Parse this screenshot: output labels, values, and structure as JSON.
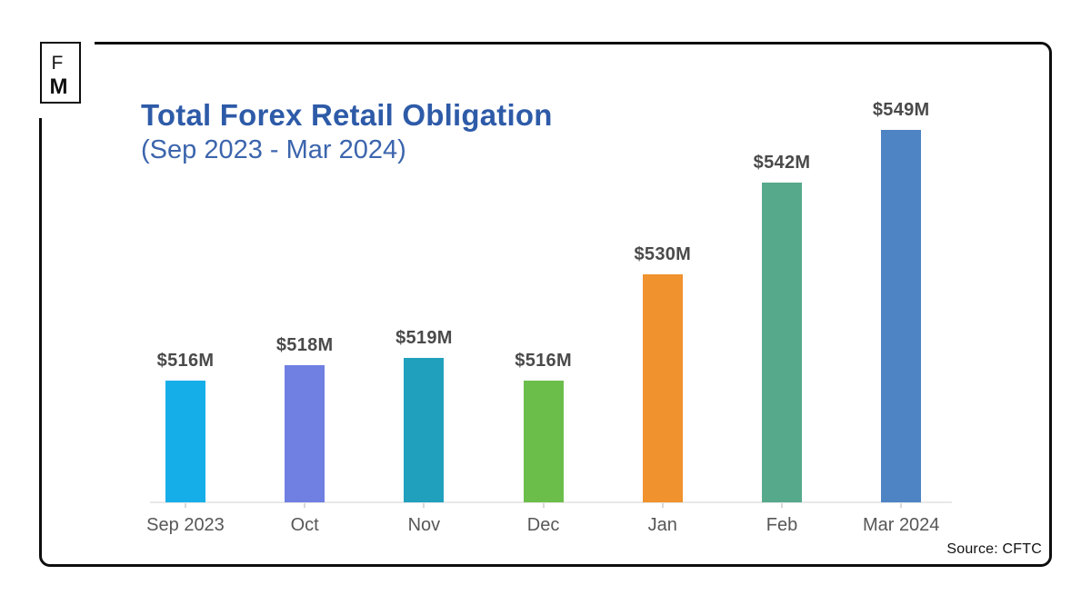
{
  "logo": {
    "line1": "F",
    "line2": "M"
  },
  "header": {
    "title": "Total Forex Retail Obligation",
    "subtitle": "(Sep 2023 - Mar 2024)",
    "title_color": "#2e5ba8"
  },
  "footer": {
    "source": "Source: CFTC"
  },
  "chart_data": {
    "type": "bar",
    "title": "Total Forex Retail Obligation",
    "subtitle": "(Sep 2023 - Mar 2024)",
    "unit": "USD millions",
    "categories": [
      "Sep 2023",
      "Oct",
      "Nov",
      "Dec",
      "Jan",
      "Feb",
      "Mar 2024"
    ],
    "values": [
      516,
      518,
      519,
      516,
      530,
      542,
      549
    ],
    "data_labels": [
      "$516M",
      "$518M",
      "$519M",
      "$516M",
      "$530M",
      "$542M",
      "$549M"
    ],
    "bar_colors": [
      "#16aee8",
      "#6f7fe2",
      "#21a0be",
      "#6cbe4b",
      "#f0922e",
      "#57a98b",
      "#4e84c4"
    ],
    "ylim": [
      500,
      556
    ],
    "xlabel": "",
    "ylabel": "",
    "grid": false,
    "legend": false,
    "value_label_color": "#4a4a4a",
    "axis_label_color": "#575757",
    "axis_line_color": "#e9e9e9",
    "source": "Source: CFTC"
  }
}
